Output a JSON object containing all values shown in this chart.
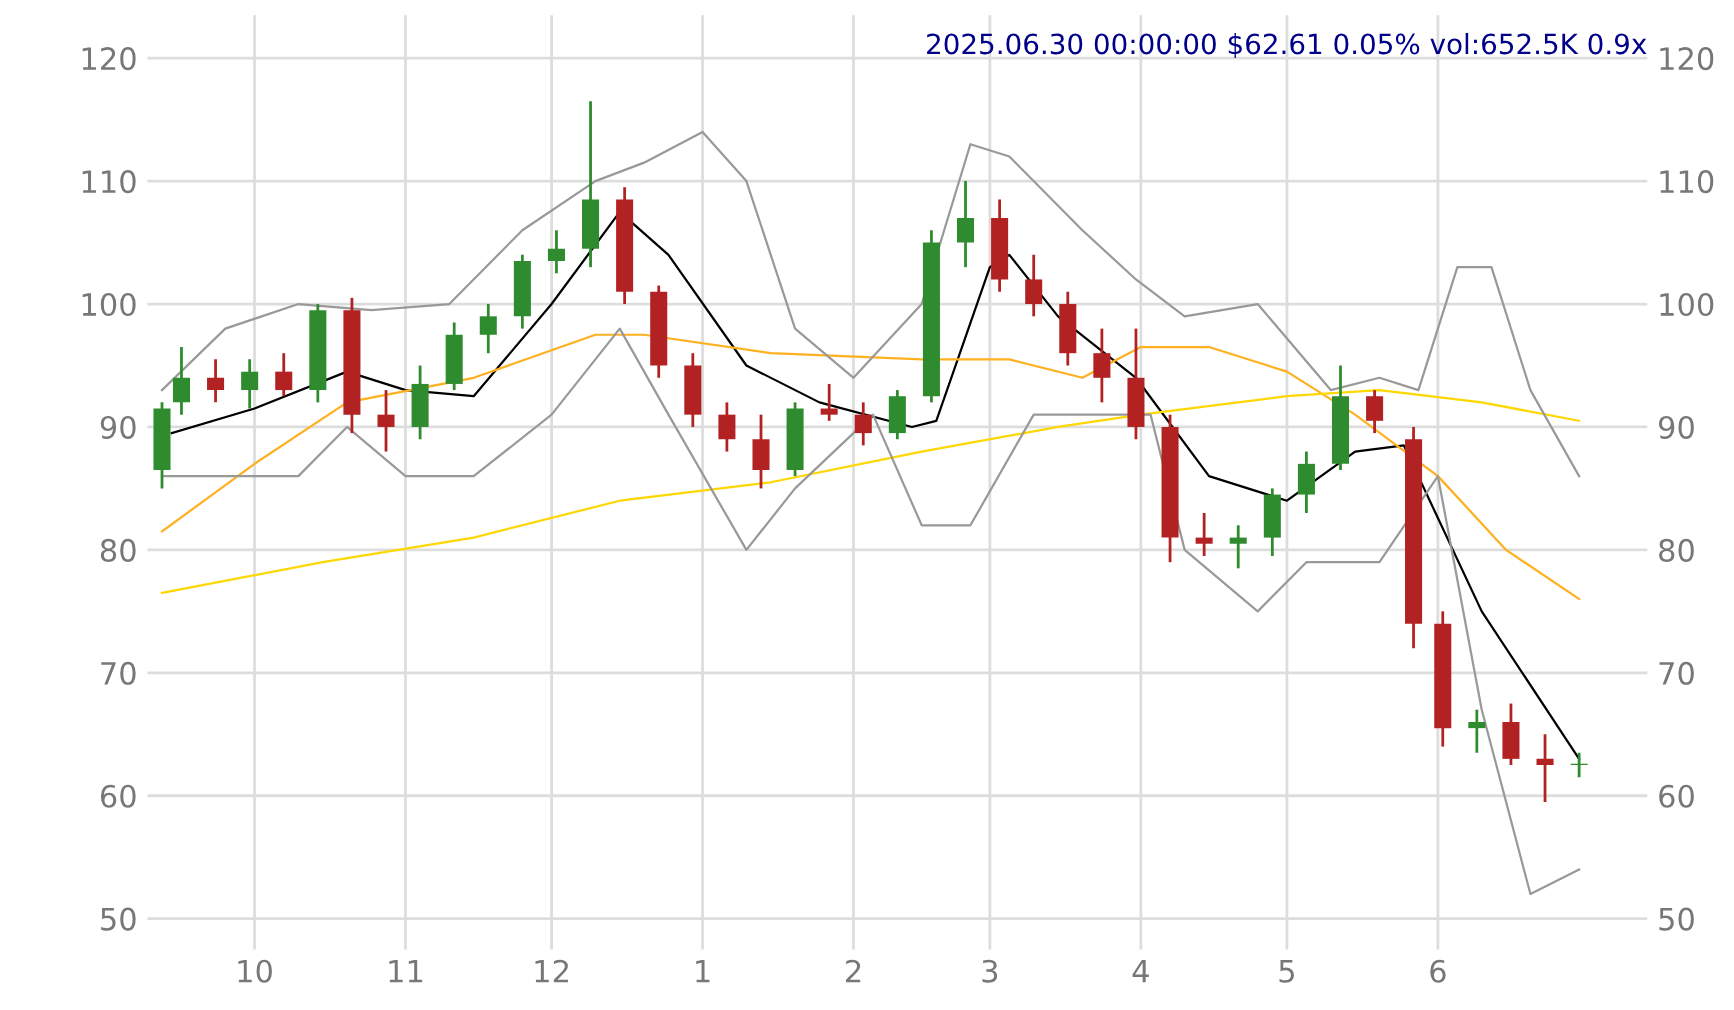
{
  "chart_data": {
    "type": "candlestick",
    "title": "2025.06.30 00:00:00 $62.61 0.05% vol:652.5K 0.9x",
    "x": [
      "2024-09-12",
      "2024-09-16",
      "2024-09-23",
      "2024-09-30",
      "2024-10-07",
      "2024-10-14",
      "2024-10-21",
      "2024-10-28",
      "2024-11-04",
      "2024-11-11",
      "2024-11-18",
      "2024-11-25",
      "2024-12-02",
      "2024-12-09",
      "2024-12-16",
      "2024-12-23",
      "2024-12-30",
      "2025-01-06",
      "2025-01-13",
      "2025-01-20",
      "2025-01-27",
      "2025-02-03",
      "2025-02-10",
      "2025-02-17",
      "2025-02-24",
      "2025-03-03",
      "2025-03-10",
      "2025-03-17",
      "2025-03-24",
      "2025-03-31",
      "2025-04-07",
      "2025-04-14",
      "2025-04-21",
      "2025-04-28",
      "2025-05-05",
      "2025-05-12",
      "2025-05-19",
      "2025-05-27",
      "2025-06-02",
      "2025-06-09",
      "2025-06-16",
      "2025-06-23",
      "2025-06-30"
    ],
    "ohlc": [
      [
        86.5,
        92,
        85,
        91.5
      ],
      [
        92,
        96.5,
        91,
        94
      ],
      [
        94,
        95.5,
        92,
        93
      ],
      [
        93,
        95.5,
        91.5,
        94.5
      ],
      [
        94.5,
        96,
        92.5,
        93
      ],
      [
        93,
        100,
        92,
        99.5
      ],
      [
        99.5,
        100.5,
        89.5,
        91
      ],
      [
        91,
        93,
        88,
        90
      ],
      [
        90,
        95,
        89,
        93.5
      ],
      [
        93.5,
        98.5,
        93,
        97.5
      ],
      [
        97.5,
        100,
        96,
        99
      ],
      [
        99,
        104,
        98,
        103.5
      ],
      [
        103.5,
        106,
        102.5,
        104.5
      ],
      [
        104.5,
        116.5,
        103,
        108.5
      ],
      [
        108.5,
        109.5,
        100,
        101
      ],
      [
        101,
        101.5,
        94,
        95
      ],
      [
        95,
        96,
        90,
        91
      ],
      [
        91,
        92,
        88,
        89
      ],
      [
        89,
        91,
        85,
        86.5
      ],
      [
        86.5,
        92,
        86,
        91.5
      ],
      [
        91.5,
        93.5,
        90.5,
        91
      ],
      [
        91,
        92,
        88.5,
        89.5
      ],
      [
        89.5,
        93,
        89,
        92.5
      ],
      [
        92.5,
        106,
        92,
        105
      ],
      [
        105,
        110,
        103,
        107
      ],
      [
        107,
        108.5,
        101,
        102
      ],
      [
        102,
        104,
        99,
        100
      ],
      [
        100,
        101,
        95,
        96
      ],
      [
        96,
        98,
        92,
        94
      ],
      [
        94,
        98,
        89,
        90
      ],
      [
        90,
        91,
        79,
        81
      ],
      [
        81,
        83,
        79.5,
        80.5
      ],
      [
        80.5,
        82,
        78.5,
        81
      ],
      [
        81,
        85,
        79.5,
        84.5
      ],
      [
        84.5,
        88,
        83,
        87
      ],
      [
        87,
        95,
        86.5,
        92.5
      ],
      [
        92.5,
        93,
        89.5,
        90.5
      ],
      [
        89,
        90,
        72,
        74
      ],
      [
        74,
        75,
        64,
        65.5
      ],
      [
        65.5,
        67,
        63.5,
        66
      ],
      [
        66,
        67.5,
        62.5,
        63
      ],
      [
        63,
        65,
        59.5,
        62.5
      ],
      [
        62.5,
        63.5,
        61.5,
        62.6
      ]
    ],
    "colors": [
      "#2e8b2e",
      "#2e8b2e",
      "#b22222",
      "#2e8b2e",
      "#b22222",
      "#2e8b2e",
      "#b22222",
      "#b22222",
      "#2e8b2e",
      "#2e8b2e",
      "#2e8b2e",
      "#2e8b2e",
      "#2e8b2e",
      "#2e8b2e",
      "#b22222",
      "#b22222",
      "#b22222",
      "#b22222",
      "#b22222",
      "#2e8b2e",
      "#b22222",
      "#b22222",
      "#2e8b2e",
      "#2e8b2e",
      "#2e8b2e",
      "#b22222",
      "#b22222",
      "#b22222",
      "#b22222",
      "#b22222",
      "#b22222",
      "#b22222",
      "#2e8b2e",
      "#2e8b2e",
      "#2e8b2e",
      "#2e8b2e",
      "#b22222",
      "#b22222",
      "#b22222",
      "#2e8b2e",
      "#b22222",
      "#b22222",
      "#2e8b2e"
    ],
    "series": [
      {
        "type": "line",
        "color": "#000000",
        "x": [
          "2024-09-14",
          "2024-10-01",
          "2024-10-20",
          "2024-11-01",
          "2024-11-15",
          "2024-12-01",
          "2024-12-15",
          "2024-12-25",
          "2025-01-10",
          "2025-01-25",
          "2025-02-13",
          "2025-02-18",
          "2025-03-01",
          "2025-03-05",
          "2025-03-15",
          "2025-03-31",
          "2025-04-15",
          "2025-05-01",
          "2025-05-15",
          "2025-05-25",
          "2025-06-10",
          "2025-06-30"
        ],
        "values": [
          89.5,
          91.5,
          94.5,
          93,
          92.5,
          100,
          107.5,
          104,
          95,
          92,
          90,
          90.5,
          103,
          104,
          99,
          94,
          86,
          84,
          88,
          88.5,
          75,
          63
        ]
      },
      {
        "type": "line",
        "color": "#ffb020",
        "x": [
          "2024-09-12",
          "2024-10-01",
          "2024-10-20",
          "2024-11-15",
          "2024-12-10",
          "2024-12-20",
          "2025-01-15",
          "2025-02-15",
          "2025-03-05",
          "2025-03-20",
          "2025-04-01",
          "2025-04-15",
          "2025-05-01",
          "2025-05-15",
          "2025-06-01",
          "2025-06-15",
          "2025-06-30"
        ],
        "values": [
          81.5,
          87,
          92,
          94,
          97.5,
          97.5,
          96,
          95.5,
          95.5,
          94,
          96.5,
          96.5,
          94.5,
          91,
          86,
          80,
          76
        ]
      },
      {
        "type": "line",
        "color": "#ffd700",
        "x": [
          "2024-09-12",
          "2024-10-15",
          "2024-11-15",
          "2024-12-15",
          "2025-01-15",
          "2025-02-15",
          "2025-03-15",
          "2025-04-01",
          "2025-05-01",
          "2025-05-20",
          "2025-06-10",
          "2025-06-30"
        ],
        "values": [
          76.5,
          79,
          81,
          84,
          85.5,
          88,
          90,
          91,
          92.5,
          93,
          92,
          90.5
        ]
      },
      {
        "type": "line",
        "color": "#999999",
        "x": [
          "2024-09-12",
          "2024-09-25",
          "2024-10-10",
          "2024-10-25",
          "2024-11-10",
          "2024-11-25",
          "2024-12-10",
          "2024-12-20",
          "2025-01-01",
          "2025-01-10",
          "2025-01-20",
          "2025-02-01",
          "2025-02-15",
          "2025-02-25",
          "2025-03-05",
          "2025-03-20",
          "2025-03-31",
          "2025-04-10",
          "2025-04-25",
          "2025-05-10",
          "2025-05-20",
          "2025-05-28",
          "2025-06-05",
          "2025-06-12",
          "2025-06-20",
          "2025-06-30"
        ],
        "values": [
          93,
          98,
          100,
          99.5,
          100,
          106,
          110,
          111.5,
          114,
          110,
          98,
          94,
          100,
          113,
          112,
          106,
          102,
          99,
          100,
          93,
          94,
          93,
          103,
          103,
          93,
          86
        ]
      },
      {
        "type": "line",
        "color": "#999999",
        "x": [
          "2024-09-12",
          "2024-09-25",
          "2024-10-10",
          "2024-10-20",
          "2024-11-01",
          "2024-11-15",
          "2024-12-01",
          "2024-12-15",
          "2024-12-25",
          "2025-01-10",
          "2025-01-20",
          "2025-02-05",
          "2025-02-15",
          "2025-02-25",
          "2025-03-10",
          "2025-04-03",
          "2025-04-10",
          "2025-04-25",
          "2025-05-05",
          "2025-05-20",
          "2025-06-01",
          "2025-06-10",
          "2025-06-20",
          "2025-06-30"
        ],
        "values": [
          86,
          86,
          86,
          90,
          86,
          86,
          91,
          98,
          91,
          80,
          85,
          91,
          82,
          82,
          91,
          91,
          80,
          75,
          79,
          79,
          86,
          67,
          52,
          54
        ]
      }
    ],
    "xlim": [
      "2024-09-09",
      "2025-07-14"
    ],
    "xticks": [
      {
        "value": "2024-10-01",
        "label": "10"
      },
      {
        "value": "2024-11-01",
        "label": "11"
      },
      {
        "value": "2024-12-01",
        "label": "12"
      },
      {
        "value": "2025-01-01",
        "label": "1"
      },
      {
        "value": "2025-02-01",
        "label": "2"
      },
      {
        "value": "2025-03-01",
        "label": "3"
      },
      {
        "value": "2025-04-01",
        "label": "4"
      },
      {
        "value": "2025-05-01",
        "label": "5"
      },
      {
        "value": "2025-06-01",
        "label": "6"
      }
    ],
    "ylim": [
      47.5,
      123.5
    ],
    "yticks": [
      50,
      60,
      70,
      80,
      90,
      100,
      110,
      120
    ],
    "y2lim": [
      47.5,
      123.5
    ],
    "y2ticks": [
      50,
      60,
      70,
      80,
      90,
      100,
      110,
      120
    ],
    "grid": true
  }
}
